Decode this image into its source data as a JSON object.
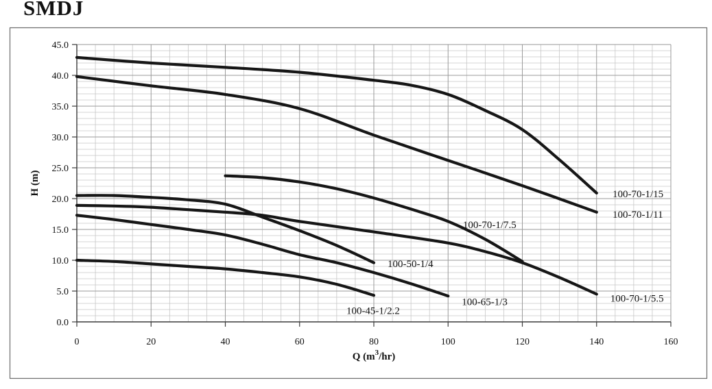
{
  "page": {
    "title": "SMDJ"
  },
  "colors": {
    "curve": "#161616",
    "grid_minor": "#c6c6c6",
    "grid_major": "#9a9a9a",
    "axis": "#3a3a3a",
    "text": "#111111",
    "background": "#ffffff"
  },
  "chart_data": {
    "type": "line",
    "title": "SMDJ",
    "xlabel": "Q (m3/hr)",
    "xlabel_parts": {
      "prefix": "Q (m",
      "sup": "3",
      "suffix": "/hr)"
    },
    "ylabel": "H (m)",
    "xlim": [
      0,
      160
    ],
    "ylim": [
      0,
      45
    ],
    "x_major_step": 20,
    "x_minor_step": 5,
    "y_major_step": 5,
    "y_minor_step": 1,
    "grid": "on",
    "legend_position": "inline-labels",
    "x_ticks": [
      "0",
      "20",
      "40",
      "60",
      "80",
      "100",
      "120",
      "140",
      "160"
    ],
    "y_ticks": [
      "0.0",
      "5.0",
      "10.0",
      "15.0",
      "20.0",
      "25.0",
      "30.0",
      "35.0",
      "40.0",
      "45.0"
    ],
    "series": [
      {
        "name": "100-70-1/15",
        "points": [
          [
            0,
            42.9
          ],
          [
            20,
            42.0
          ],
          [
            40,
            41.3
          ],
          [
            60,
            40.5
          ],
          [
            80,
            39.2
          ],
          [
            90,
            38.4
          ],
          [
            100,
            36.9
          ],
          [
            110,
            34.3
          ],
          [
            120,
            31.2
          ],
          [
            130,
            26.3
          ],
          [
            140,
            20.9
          ]
        ],
        "label_q": 144.3,
        "label_h": 20.2,
        "label_anchor": "start"
      },
      {
        "name": "100-70-1/11",
        "points": [
          [
            0,
            39.8
          ],
          [
            20,
            38.3
          ],
          [
            40,
            36.9
          ],
          [
            60,
            34.6
          ],
          [
            80,
            30.3
          ],
          [
            100,
            26.2
          ],
          [
            120,
            22.1
          ],
          [
            140,
            17.8
          ]
        ],
        "label_q": 144.3,
        "label_h": 16.9,
        "label_anchor": "start"
      },
      {
        "name": "100-70-1/7.5",
        "points": [
          [
            40,
            23.7
          ],
          [
            50,
            23.4
          ],
          [
            60,
            22.7
          ],
          [
            70,
            21.6
          ],
          [
            80,
            20.1
          ],
          [
            90,
            18.3
          ],
          [
            100,
            16.3
          ],
          [
            110,
            13.4
          ],
          [
            120,
            9.8
          ]
        ],
        "label_q": 104.0,
        "label_h": 15.2,
        "label_anchor": "start"
      },
      {
        "name": "100-70-1/5.5",
        "points": [
          [
            0,
            18.9
          ],
          [
            10,
            18.8
          ],
          [
            20,
            18.6
          ],
          [
            30,
            18.2
          ],
          [
            40,
            17.8
          ],
          [
            50,
            17.3
          ],
          [
            60,
            16.3
          ],
          [
            80,
            14.6
          ],
          [
            100,
            12.8
          ],
          [
            110,
            11.4
          ],
          [
            120,
            9.6
          ],
          [
            130,
            7.2
          ],
          [
            140,
            4.5
          ]
        ],
        "label_q": 143.7,
        "label_h": 3.3,
        "label_anchor": "start"
      },
      {
        "name": "100-50-1/4",
        "points": [
          [
            0,
            20.5
          ],
          [
            10,
            20.5
          ],
          [
            20,
            20.2
          ],
          [
            30,
            19.8
          ],
          [
            40,
            19.1
          ],
          [
            50,
            17.0
          ],
          [
            60,
            14.8
          ],
          [
            70,
            12.4
          ],
          [
            80,
            9.6
          ]
        ],
        "label_q": 83.7,
        "label_h": 8.9,
        "label_anchor": "start"
      },
      {
        "name": "100-65-1/3",
        "points": [
          [
            0,
            17.3
          ],
          [
            10,
            16.6
          ],
          [
            20,
            15.8
          ],
          [
            30,
            15.0
          ],
          [
            40,
            14.1
          ],
          [
            50,
            12.6
          ],
          [
            60,
            10.9
          ],
          [
            70,
            9.6
          ],
          [
            80,
            8.0
          ],
          [
            90,
            6.2
          ],
          [
            100,
            4.2
          ]
        ],
        "label_q": 103.7,
        "label_h": 2.7,
        "label_anchor": "start"
      },
      {
        "name": "100-45-1/2.2",
        "points": [
          [
            0,
            10.0
          ],
          [
            10,
            9.8
          ],
          [
            20,
            9.4
          ],
          [
            30,
            9.0
          ],
          [
            40,
            8.6
          ],
          [
            50,
            8.0
          ],
          [
            60,
            7.3
          ],
          [
            70,
            6.1
          ],
          [
            80,
            4.3
          ]
        ],
        "label_q": 72.6,
        "label_h": 1.3,
        "label_anchor": "start"
      }
    ]
  }
}
